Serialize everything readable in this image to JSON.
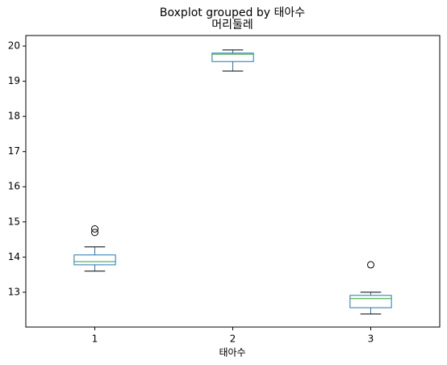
{
  "chart_data": {
    "type": "box",
    "suptitle": "Boxplot grouped by 태아수",
    "title": "머리둘레",
    "x_label": "태아수",
    "categories": [
      "1",
      "2",
      "3"
    ],
    "boxes": [
      {
        "whislo": 13.6,
        "q1": 13.78,
        "med": 13.87,
        "q3": 14.06,
        "whishi": 14.29,
        "fliers": [
          14.8,
          14.7
        ]
      },
      {
        "whislo": 19.29,
        "q1": 19.56,
        "med": 19.77,
        "q3": 19.8,
        "whishi": 19.89,
        "fliers": []
      },
      {
        "whislo": 12.38,
        "q1": 12.56,
        "med": 12.82,
        "q3": 12.91,
        "whishi": 13.0,
        "fliers": [
          13.78
        ]
      }
    ],
    "box_color": "#1f77b4",
    "median_color": "#2ca02c",
    "cap_color": "#000000",
    "ylim": [
      12.01,
      20.3
    ],
    "yticks": [
      13,
      14,
      15,
      16,
      17,
      18,
      19,
      20
    ],
    "grid": false
  }
}
